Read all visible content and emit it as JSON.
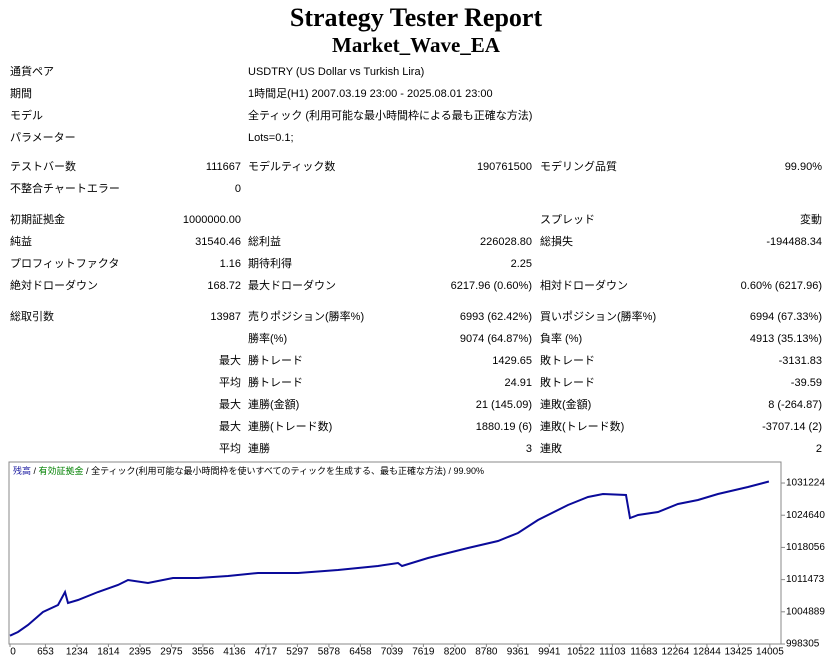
{
  "header": {
    "title": "Strategy Tester Report",
    "subtitle": "Market_Wave_EA"
  },
  "rows": [
    {
      "cells": [
        "通貨ペア",
        "USDTRY (US Dollar vs Turkish Lira)"
      ]
    },
    {
      "cells": [
        "期間",
        "1時間足(H1) 2007.03.19 23:00 - 2025.08.01 23:00"
      ]
    },
    {
      "cells": [
        "モデル",
        "全ティック (利用可能な最小時間枠による最も正確な方法)"
      ]
    },
    {
      "cells": [
        "パラメーター",
        "Lots=0.1;"
      ]
    },
    {
      "cells": [
        "テストバー数",
        "111667",
        "モデルティック数",
        "190761500",
        "モデリング品質",
        "99.90%"
      ]
    },
    {
      "cells": [
        "不整合チャートエラー",
        "0"
      ]
    },
    {
      "cells": [
        "初期証拠金",
        "1000000.00",
        null,
        null,
        "スプレッド",
        "変動"
      ]
    },
    {
      "cells": [
        "純益",
        "31540.46",
        "総利益",
        "226028.80",
        "総損失",
        "-194488.34"
      ]
    },
    {
      "cells": [
        "プロフィットファクタ",
        "1.16",
        "期待利得",
        "2.25"
      ]
    },
    {
      "cells": [
        "絶対ドローダウン",
        "168.72",
        "最大ドローダウン",
        "6217.96 (0.60%)",
        "相対ドローダウン",
        "0.60% (6217.96)"
      ]
    },
    {
      "cells": [
        "総取引数",
        "13987",
        "売りポジション(勝率%)",
        "6993 (62.42%)",
        "買いポジション(勝率%)",
        "6994 (67.33%)"
      ]
    },
    {
      "cells": [
        null,
        null,
        "勝率(%)",
        "9074 (64.87%)",
        "負率 (%)",
        "4913 (35.13%)"
      ]
    },
    {
      "cells": [
        null,
        "最大",
        "勝トレード",
        "1429.65",
        "敗トレード",
        "-3131.83"
      ]
    },
    {
      "cells": [
        null,
        "平均",
        "勝トレード",
        "24.91",
        "敗トレード",
        "-39.59"
      ]
    },
    {
      "cells": [
        null,
        "最大",
        "連勝(金額)",
        "21 (145.09)",
        "連敗(金額)",
        "8 (-264.87)"
      ]
    },
    {
      "cells": [
        null,
        "最大",
        "連勝(トレード数)",
        "1880.19 (6)",
        "連敗(トレード数)",
        "-3707.14 (2)"
      ]
    },
    {
      "cells": [
        null,
        "平均",
        "連勝",
        "3",
        "連敗",
        "2"
      ]
    }
  ],
  "chart_data": {
    "type": "line",
    "legend": [
      {
        "text": "残高",
        "color": "#1a1aa0"
      },
      {
        "text": "有効証拠金",
        "color": "#008000"
      },
      {
        "text": "全ティック(利用可能な最小時間枠を使いすべてのティックを生成する、最も正確な方法)",
        "color": "#000000"
      },
      {
        "text": "99.90%",
        "color": "#000000"
      }
    ],
    "x": [
      0,
      147,
      332,
      608,
      885,
      1014,
      1069,
      1253,
      1622,
      1990,
      2175,
      2543,
      3004,
      3465,
      4018,
      4571,
      5308,
      6045,
      6782,
      7151,
      7225,
      7704,
      8441,
      8994,
      9363,
      9731,
      10284,
      10653,
      10929,
      11353,
      11427,
      11575,
      11943,
      12311,
      12680,
      13048,
      13601,
      13987
    ],
    "series": [
      {
        "name": "残高",
        "color": "#0a0a9a",
        "values": [
          1000000,
          1000759,
          1002191,
          1004849,
          1006281,
          1008939,
          1006690,
          1007303,
          1008939,
          1010371,
          1011393,
          1010780,
          1011802,
          1011802,
          1012211,
          1012825,
          1012825,
          1013438,
          1014256,
          1014870,
          1014256,
          1015892,
          1017937,
          1019369,
          1021005,
          1023663,
          1026731,
          1028367,
          1028980,
          1028776,
          1024072,
          1024686,
          1025299,
          1026935,
          1027753,
          1028980,
          1030412,
          1031540
        ]
      }
    ],
    "xlim": [
      0,
      14210
    ],
    "ylim": [
      998305,
      1035524
    ],
    "xticks": [
      0,
      653,
      1234,
      1814,
      2395,
      2975,
      3556,
      4136,
      4717,
      5297,
      5878,
      6458,
      7039,
      7619,
      8200,
      8780,
      9361,
      9941,
      10522,
      11103,
      11683,
      12264,
      12844,
      13425,
      14005
    ],
    "yticks": [
      998305,
      1004889,
      1011473,
      1018056,
      1024640,
      1031224
    ]
  }
}
